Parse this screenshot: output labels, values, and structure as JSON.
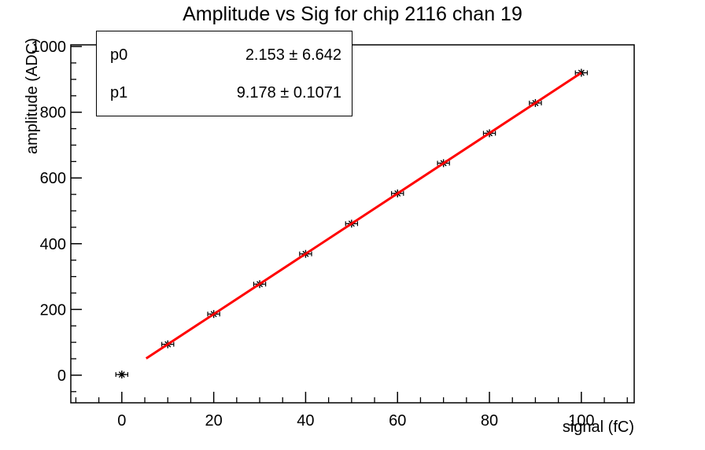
{
  "chart_title": "Amplitude vs Sig for chip 2116 chan 19",
  "stats_box": {
    "rows": [
      {
        "label": "p0",
        "value": "2.153 ± 6.642"
      },
      {
        "label": "p1",
        "value": "9.178 ± 0.1071"
      }
    ]
  },
  "chart_data": {
    "type": "scatter",
    "title": "Amplitude vs Sig for chip 2116 chan 19",
    "xlabel": "signal (fC)",
    "ylabel": "amplitude (ADC)",
    "xlim": [
      -11.1,
      111.5
    ],
    "ylim": [
      -84,
      1005
    ],
    "x_major_ticks": [
      0,
      20,
      40,
      60,
      80,
      100
    ],
    "x_minor_step": 5,
    "y_major_ticks": [
      0,
      200,
      400,
      600,
      800,
      1000
    ],
    "y_minor_step": 50,
    "grid": false,
    "legend_position": "top-left",
    "points": {
      "x": [
        0,
        10,
        20,
        30,
        40,
        50,
        60,
        70,
        80,
        90,
        100
      ],
      "y": [
        2,
        94,
        186,
        277,
        369,
        461,
        553,
        645,
        736,
        828,
        920
      ],
      "x_err": 1.3,
      "marker": "asterisk",
      "marker_color": "#000000"
    },
    "fit": {
      "type": "linear",
      "p0": 2.153,
      "p1": 9.178,
      "p0_err": 6.642,
      "p1_err": 0.1071,
      "x_range": [
        5.3,
        100
      ],
      "color": "#ff0000",
      "line_width": 3
    },
    "frame_color": "#000000",
    "background_color": "#ffffff"
  }
}
